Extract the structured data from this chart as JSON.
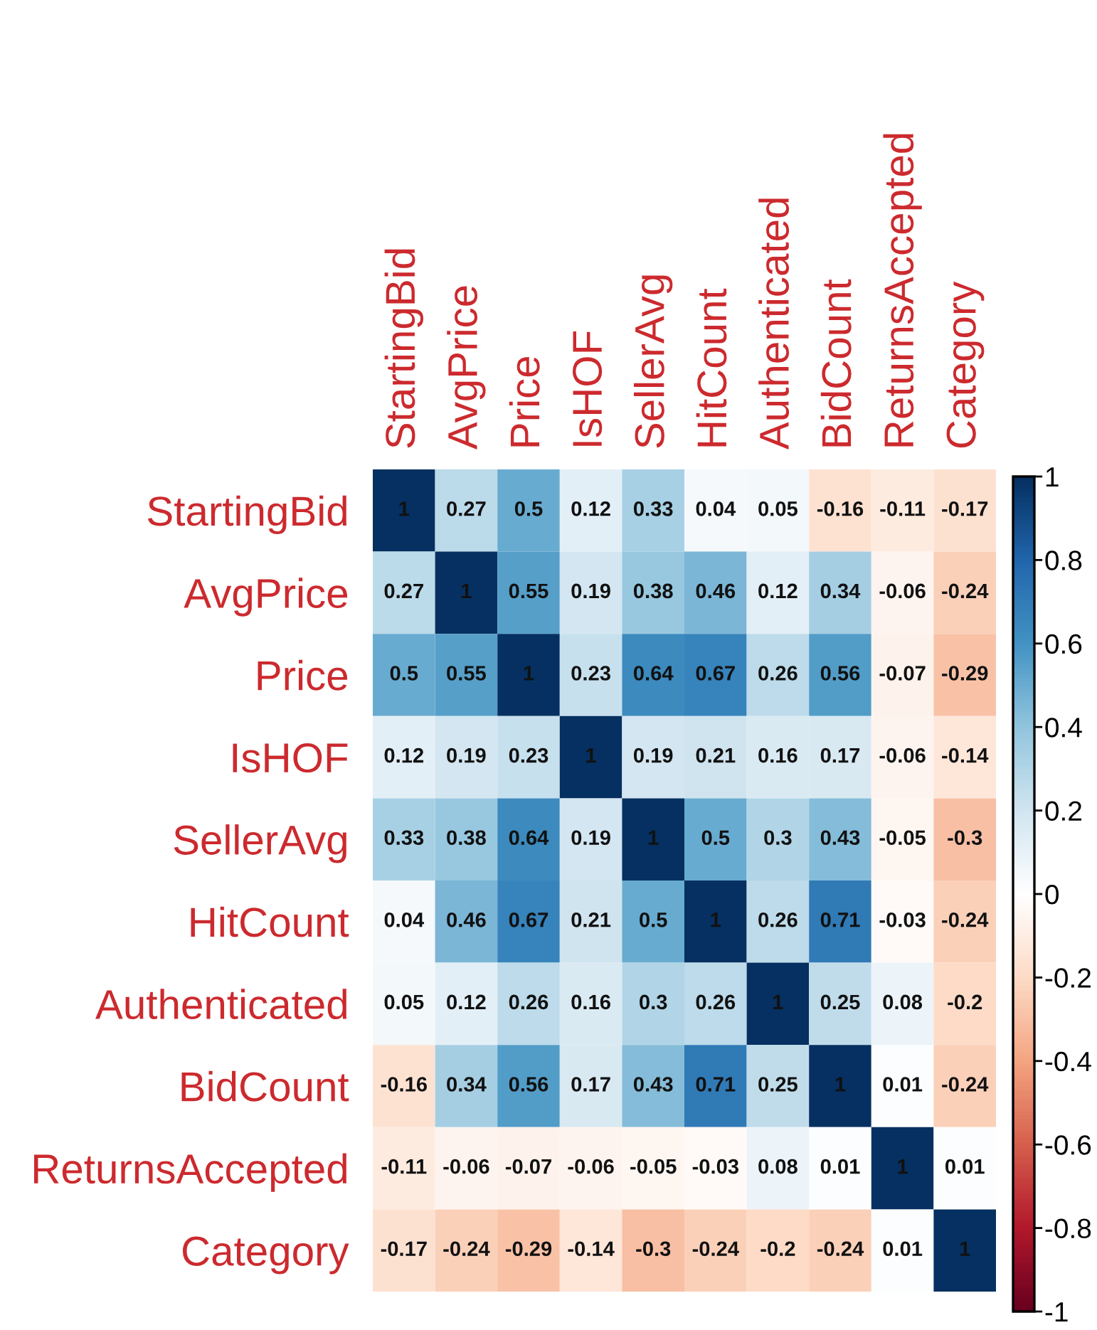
{
  "chart_data": {
    "type": "heatmap",
    "categories": [
      "StartingBid",
      "AvgPrice",
      "Price",
      "IsHOF",
      "SellerAvg",
      "HitCount",
      "Authenticated",
      "BidCount",
      "ReturnsAccepted",
      "Category"
    ],
    "y_categories": [
      "StartingBid",
      "AvgPrice",
      "Price",
      "IsHOF",
      "SellerAvg",
      "HitCount",
      "Authenticated",
      "BidCount",
      "ReturnsAccepted",
      "Category"
    ],
    "cells": [
      [
        1,
        0.27,
        0.5,
        0.12,
        0.33,
        0.04,
        0.05,
        -0.16,
        -0.11,
        -0.17
      ],
      [
        0.27,
        1,
        0.55,
        0.19,
        0.38,
        0.46,
        0.12,
        0.34,
        -0.06,
        -0.24
      ],
      [
        0.5,
        0.55,
        1,
        0.23,
        0.64,
        0.67,
        0.26,
        0.56,
        -0.07,
        -0.29
      ],
      [
        0.12,
        0.19,
        0.23,
        1,
        0.19,
        0.21,
        0.16,
        0.17,
        -0.06,
        -0.14
      ],
      [
        0.33,
        0.38,
        0.64,
        0.19,
        1,
        0.5,
        0.3,
        0.43,
        -0.05,
        -0.3
      ],
      [
        0.04,
        0.46,
        0.67,
        0.21,
        0.5,
        1,
        0.26,
        0.71,
        -0.03,
        -0.24
      ],
      [
        0.05,
        0.12,
        0.26,
        0.16,
        0.3,
        0.26,
        1,
        0.25,
        0.08,
        -0.2
      ],
      [
        -0.16,
        0.34,
        0.56,
        0.17,
        0.43,
        0.71,
        0.25,
        1,
        0.01,
        -0.24
      ],
      [
        -0.11,
        -0.06,
        -0.07,
        -0.06,
        -0.05,
        -0.03,
        0.08,
        0.01,
        1,
        0.01
      ],
      [
        -0.17,
        -0.24,
        -0.29,
        -0.14,
        -0.3,
        -0.24,
        -0.2,
        -0.24,
        0.01,
        1
      ]
    ],
    "data_labels": true,
    "clim": [
      -1,
      1
    ],
    "cticks": [
      -1,
      -0.8,
      -0.6,
      -0.4,
      -0.2,
      0,
      0.2,
      0.4,
      0.6,
      0.8,
      1
    ]
  }
}
